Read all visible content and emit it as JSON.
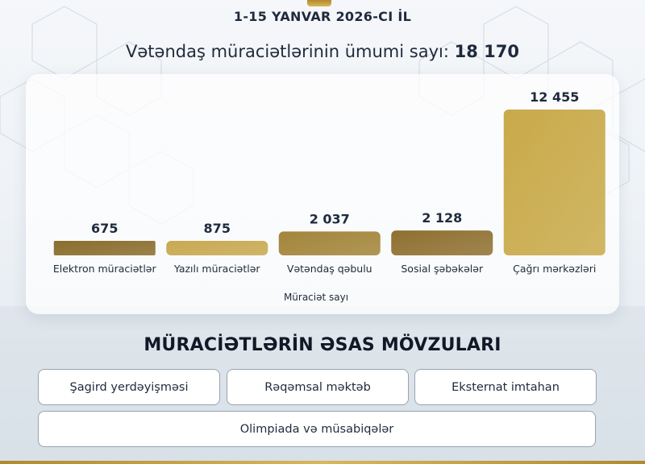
{
  "header": {
    "period": "1-15 YANVAR 2026-CI İL",
    "total_label": "Vətəndaş müraciətlərinin ümumi sayı:",
    "total_value": "18 170"
  },
  "chart_data": {
    "type": "bar",
    "categories": [
      "Elektron müraciətlər",
      "Yazılı müraciətlər",
      "Vətəndaş qəbulu",
      "Sosial şəbəkələr",
      "Çağrı mərkəzləri"
    ],
    "values": [
      675,
      875,
      2037,
      2128,
      12455
    ],
    "value_labels": [
      "675",
      "875",
      "2 037",
      "2 128",
      "12 455"
    ],
    "xlabel": "Müraciət sayı",
    "ylabel": "",
    "bar_colors": [
      "#8a6d2c",
      "#c8a951",
      "#a3853a",
      "#8f7030",
      "#c9aa4a"
    ],
    "grid": false
  },
  "topics": {
    "title": "MÜRACİƏTLƏRİN ƏSAS MÖVZULARI",
    "items": [
      "Şagird yerdəyişməsi",
      "Rəqəmsal məktəb",
      "Eksternat imtahan",
      "Olimpiada və müsabiqələr"
    ]
  }
}
